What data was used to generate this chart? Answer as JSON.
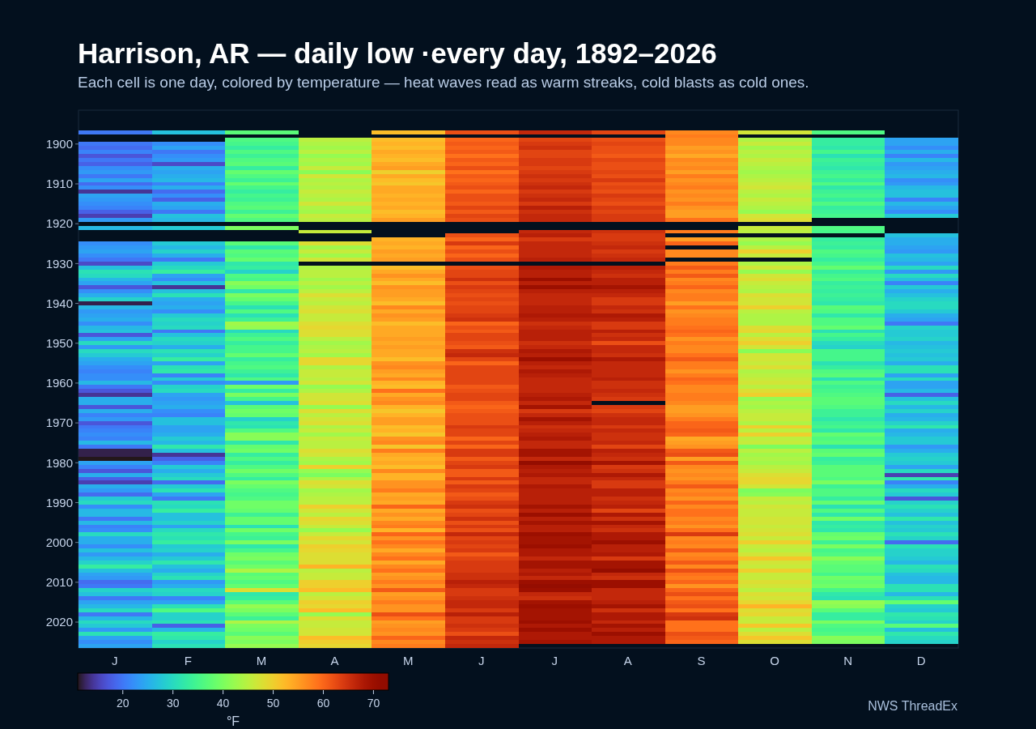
{
  "chart_data": {
    "type": "heatmap",
    "title": "Harrison, AR — daily low ·every day, 1892–2026",
    "subtitle": "Each cell is one day, colored by temperature — heat waves read as warm streaks, cold blasts as cold ones.",
    "categories": [
      "J",
      "F",
      "M",
      "A",
      "M",
      "J",
      "J",
      "A",
      "S",
      "O",
      "N",
      "D"
    ],
    "y_categories": [
      null,
      null,
      null,
      "1900",
      null,
      null,
      null,
      null,
      null,
      null,
      null,
      null,
      null,
      "1910",
      null,
      null,
      null,
      null,
      null,
      null,
      null,
      null,
      null,
      "1920",
      null,
      null,
      null,
      null,
      null,
      null,
      null,
      null,
      null,
      "1930",
      null,
      null,
      null,
      null,
      null,
      null,
      null,
      null,
      null,
      "1940",
      null,
      null,
      null,
      null,
      null,
      null,
      null,
      null,
      null,
      "1950",
      null,
      null,
      null,
      null,
      null,
      null,
      null,
      null,
      null,
      "1960",
      null,
      null,
      null,
      null,
      null,
      null,
      null,
      null,
      null,
      "1970",
      null,
      null,
      null,
      null,
      null,
      null,
      null,
      null,
      null,
      "1980",
      null,
      null,
      null,
      null,
      null,
      null,
      null,
      null,
      null,
      "1990",
      null,
      null,
      null,
      null,
      null,
      null,
      null,
      null,
      null,
      "2000",
      null,
      null,
      null,
      null,
      null,
      null,
      null,
      null,
      null,
      "2010",
      null,
      null,
      null,
      null,
      null,
      null,
      null,
      null,
      null,
      "2020",
      null,
      null,
      null,
      null,
      null,
      null
    ],
    "cells": [
      [
        20,
        27,
        37,
        null,
        52,
        62,
        66,
        63,
        57,
        47,
        36,
        null
      ],
      [
        null,
        null,
        null,
        null,
        null,
        null,
        null,
        null,
        58,
        null,
        null,
        null
      ],
      [
        null,
        null,
        36,
        45,
        52,
        60,
        63,
        62,
        57,
        44,
        33,
        24
      ],
      [
        20,
        22,
        35,
        44,
        53,
        61,
        64,
        63,
        57,
        46,
        33,
        24
      ],
      [
        19,
        24,
        33,
        43,
        52,
        60,
        65,
        62,
        55,
        43,
        32,
        22
      ],
      [
        21,
        20,
        36,
        45,
        54,
        61,
        63,
        62,
        56,
        45,
        35,
        25
      ],
      [
        17,
        22,
        34,
        42,
        53,
        59,
        63,
        61,
        54,
        44,
        31,
        21
      ],
      [
        20,
        23,
        36,
        44,
        52,
        61,
        64,
        63,
        57,
        46,
        34,
        26
      ],
      [
        18,
        16,
        37,
        43,
        54,
        60,
        64,
        62,
        56,
        45,
        33,
        23
      ],
      [
        22,
        25,
        33,
        46,
        55,
        62,
        63,
        62,
        57,
        44,
        32,
        24
      ],
      [
        23,
        24,
        38,
        41,
        50,
        59,
        64,
        63,
        55,
        43,
        34,
        25
      ],
      [
        20,
        25,
        36,
        47,
        54,
        61,
        65,
        62,
        58,
        44,
        35,
        26
      ],
      [
        24,
        26,
        34,
        44,
        52,
        60,
        64,
        64,
        56,
        45,
        33,
        22
      ],
      [
        19,
        21,
        38,
        45,
        51,
        61,
        65,
        62,
        57,
        46,
        36,
        23
      ],
      [
        22,
        25,
        35,
        44,
        54,
        62,
        66,
        63,
        58,
        47,
        32,
        26
      ],
      [
        14,
        19,
        33,
        46,
        54,
        60,
        64,
        62,
        56,
        45,
        34,
        27
      ],
      [
        24,
        22,
        35,
        45,
        53,
        62,
        65,
        64,
        57,
        44,
        35,
        27
      ],
      [
        23,
        18,
        34,
        44,
        54,
        62,
        66,
        63,
        56,
        46,
        33,
        21
      ],
      [
        22,
        25,
        36,
        47,
        53,
        61,
        64,
        62,
        58,
        45,
        36,
        26
      ],
      [
        21,
        24,
        37,
        44,
        54,
        63,
        67,
        64,
        56,
        44,
        33,
        24
      ],
      [
        18,
        20,
        34,
        43,
        52,
        61,
        65,
        63,
        55,
        42,
        34,
        22
      ],
      [
        15,
        27,
        38,
        46,
        53,
        63,
        66,
        64,
        55,
        47,
        35,
        28
      ],
      [
        23,
        26,
        36,
        45,
        55,
        62,
        66,
        64,
        59,
        48,
        null,
        null
      ],
      [
        null,
        null,
        null,
        null,
        null,
        null,
        null,
        null,
        null,
        null,
        null,
        null
      ],
      [
        26,
        28,
        40,
        null,
        null,
        null,
        null,
        null,
        null,
        46,
        36,
        null
      ],
      [
        null,
        null,
        null,
        46,
        null,
        null,
        66,
        65,
        58,
        45,
        35,
        null
      ],
      [
        null,
        null,
        null,
        null,
        null,
        62,
        67,
        64,
        null,
        null,
        null,
        27
      ],
      [
        null,
        null,
        null,
        null,
        53,
        60,
        64,
        64,
        55,
        44,
        33,
        25
      ],
      [
        22,
        28,
        37,
        48,
        54,
        64,
        66,
        65,
        60,
        42,
        34,
        25
      ],
      [
        23,
        26,
        32,
        43,
        53,
        60,
        66,
        66,
        null,
        45,
        33,
        24
      ],
      [
        24,
        29,
        37,
        46,
        55,
        62,
        66,
        64,
        57,
        50,
        36,
        23
      ],
      [
        22,
        25,
        36,
        43,
        54,
        60,
        66,
        65,
        57,
        46,
        35,
        27
      ],
      [
        20,
        20,
        38,
        47,
        55,
        62,
        67,
        66,
        null,
        null,
        33,
        26
      ],
      [
        16,
        28,
        32,
        null,
        null,
        null,
        null,
        null,
        58,
        44,
        35,
        24
      ],
      [
        27,
        30,
        33,
        44,
        52,
        62,
        68,
        67,
        61,
        47,
        38,
        30
      ],
      [
        31,
        33,
        29,
        45,
        54,
        63,
        67,
        66,
        58,
        42,
        33,
        23
      ],
      [
        30,
        24,
        36,
        45,
        56,
        63,
        67,
        65,
        61,
        47,
        35,
        30
      ],
      [
        26,
        22,
        35,
        43,
        54,
        65,
        70,
        67,
        57,
        48,
        36,
        27
      ],
      [
        24,
        27,
        41,
        45,
        52,
        62,
        67,
        67,
        58,
        46,
        33,
        21
      ],
      [
        17,
        14,
        39,
        43,
        56,
        64,
        70,
        69,
        60,
        45,
        34,
        28
      ],
      [
        22,
        27,
        32,
        45,
        55,
        63,
        67,
        67,
        57,
        44,
        33,
        25
      ],
      [
        25,
        31,
        40,
        48,
        55,
        62,
        66,
        66,
        58,
        48,
        34,
        27
      ],
      [
        29,
        25,
        38,
        46,
        54,
        63,
        66,
        64,
        58,
        47,
        33,
        29
      ],
      [
        12,
        24,
        35,
        45,
        52,
        62,
        66,
        64,
        55,
        47,
        32,
        30
      ],
      [
        26,
        25,
        31,
        47,
        57,
        63,
        67,
        66,
        59,
        50,
        37,
        30
      ],
      [
        23,
        22,
        36,
        48,
        54,
        63,
        67,
        65,
        56,
        45,
        36,
        28
      ],
      [
        24,
        28,
        31,
        46,
        56,
        64,
        68,
        68,
        57,
        44,
        32,
        25
      ],
      [
        25,
        30,
        34,
        46,
        55,
        65,
        67,
        67,
        58,
        44,
        36,
        24
      ],
      [
        22,
        29,
        43,
        48,
        52,
        60,
        65,
        64,
        58,
        44,
        36,
        20
      ],
      [
        26,
        30,
        42,
        49,
        54,
        62,
        66,
        64,
        59,
        48,
        38,
        29
      ],
      [
        27,
        20,
        30,
        48,
        54,
        61,
        67,
        67,
        60,
        49,
        31,
        28
      ],
      [
        17,
        27,
        34,
        48,
        54,
        63,
        67,
        65,
        59,
        45,
        35,
        28
      ],
      [
        24,
        30,
        36,
        45,
        55,
        63,
        67,
        66,
        56,
        48,
        33,
        29
      ],
      [
        30,
        29,
        33,
        43,
        54,
        62,
        65,
        62,
        58,
        50,
        30,
        26
      ],
      [
        23,
        25,
        35,
        44,
        55,
        61,
        66,
        66,
        57,
        47,
        29,
        27
      ],
      [
        30,
        31,
        35,
        45,
        54,
        65,
        68,
        66,
        57,
        41,
        35,
        28
      ],
      [
        28,
        29,
        38,
        43,
        54,
        66,
        67,
        65,
        59,
        47,
        35,
        27
      ],
      [
        25,
        33,
        33,
        49,
        52,
        63,
        70,
        68,
        61,
        47,
        35,
        28
      ],
      [
        24,
        24,
        35,
        49,
        56,
        60,
        67,
        66,
        58,
        46,
        31,
        25
      ],
      [
        22,
        31,
        36,
        44,
        57,
        63,
        66,
        66,
        58,
        48,
        33,
        31
      ],
      [
        21,
        32,
        34,
        46,
        55,
        63,
        68,
        66,
        56,
        44,
        36,
        31
      ],
      [
        22,
        21,
        32,
        46,
        54,
        63,
        67,
        66,
        58,
        45,
        37,
        24
      ],
      [
        22,
        28,
        36,
        45,
        57,
        63,
        66,
        67,
        60,
        46,
        31,
        30
      ],
      [
        26,
        22,
        23,
        47,
        53,
        63,
        66,
        65,
        59,
        47,
        36,
        24
      ],
      [
        20,
        29,
        39,
        42,
        52,
        61,
        66,
        65,
        57,
        45,
        34,
        24
      ],
      [
        17,
        30,
        33,
        44,
        59,
        62,
        66,
        66,
        57,
        48,
        35,
        26
      ],
      [
        14,
        24,
        40,
        47,
        54,
        63,
        67,
        65,
        58,
        50,
        36,
        18
      ],
      [
        25,
        23,
        35,
        47,
        56,
        63,
        68,
        64,
        58,
        42,
        37,
        27
      ],
      [
        25,
        24,
        27,
        48,
        57,
        61,
        66,
        null,
        57,
        44,
        37,
        30
      ],
      [
        17,
        25,
        37,
        42,
        53,
        60,
        69,
        64,
        55,
        43,
        36,
        26
      ],
      [
        25,
        22,
        39,
        48,
        51,
        61,
        64,
        63,
        55,
        45,
        34,
        29
      ],
      [
        21,
        21,
        38,
        45,
        53,
        62,
        66,
        65,
        56,
        46,
        34,
        25
      ],
      [
        23,
        27,
        29,
        47,
        55,
        62,
        69,
        66,
        58,
        46,
        32,
        26
      ],
      [
        17,
        27,
        32,
        48,
        55,
        62,
        67,
        66,
        60,
        44,
        34,
        29
      ],
      [
        20,
        24,
        31,
        44,
        52,
        64,
        65,
        64,
        60,
        50,
        35,
        32
      ],
      [
        21,
        24,
        36,
        46,
        53,
        63,
        66,
        66,
        61,
        45,
        32,
        25
      ],
      [
        22,
        25,
        41,
        43,
        51,
        63,
        67,
        65,
        60,
        50,
        38,
        26
      ],
      [
        21,
        28,
        41,
        46,
        56,
        60,
        68,
        65,
        54,
        45,
        36,
        28
      ],
      [
        26,
        26,
        32,
        45,
        57,
        63,
        66,
        66,
        55,
        46,
        37,
        28
      ],
      [
        20,
        32,
        38,
        45,
        51,
        60,
        66,
        63,
        56,
        40,
        31,
        23
      ],
      [
        12,
        27,
        39,
        48,
        58,
        64,
        69,
        67,
        61,
        45,
        37,
        25
      ],
      [
        12,
        14,
        33,
        47,
        54,
        64,
        69,
        66,
        62,
        43,
        38,
        28
      ],
      [
        11,
        18,
        36,
        44,
        53,
        61,
        66,
        65,
        55,
        44,
        33,
        29
      ],
      [
        24,
        21,
        33,
        43,
        54,
        63,
        71,
        69,
        61,
        43,
        34,
        28
      ],
      [
        21,
        28,
        36,
        50,
        52,
        64,
        68,
        64,
        57,
        45,
        37,
        24
      ],
      [
        17,
        25,
        39,
        42,
        57,
        61,
        67,
        65,
        56,
        46,
        37,
        30
      ],
      [
        25,
        28,
        36,
        40,
        53,
        61,
        68,
        68,
        57,
        48,
        37,
        15
      ],
      [
        18,
        30,
        33,
        44,
        53,
        64,
        66,
        66,
        56,
        49,
        36,
        32
      ],
      [
        15,
        19,
        40,
        48,
        56,
        61,
        66,
        64,
        58,
        49,
        40,
        21
      ],
      [
        25,
        28,
        38,
        47,
        56,
        64,
        68,
        64,
        61,
        47,
        34,
        25
      ],
      [
        23,
        31,
        36,
        43,
        58,
        63,
        67,
        67,
        57,
        40,
        36,
        30
      ],
      [
        19,
        24,
        35,
        44,
        54,
        61,
        67,
        67,
        58,
        41,
        36,
        28
      ],
      [
        28,
        20,
        36,
        45,
        55,
        62,
        67,
        65,
        56,
        46,
        33,
        17
      ],
      [
        30,
        31,
        39,
        45,
        54,
        64,
        67,
        66,
        60,
        45,
        38,
        29
      ],
      [
        22,
        30,
        39,
        50,
        60,
        65,
        69,
        67,
        57,
        47,
        31,
        31
      ],
      [
        26,
        33,
        38,
        47,
        54,
        62,
        67,
        63,
        59,
        46,
        36,
        29
      ],
      [
        26,
        27,
        34,
        45,
        56,
        63,
        70,
        68,
        59,
        46,
        32,
        27
      ],
      [
        20,
        27,
        38,
        49,
        54,
        65,
        67,
        65,
        57,
        47,
        39,
        32
      ],
      [
        26,
        29,
        38,
        48,
        57,
        62,
        69,
        69,
        58,
        47,
        32,
        27
      ],
      [
        21,
        24,
        31,
        46,
        58,
        64,
        67,
        66,
        56,
        46,
        33,
        29
      ],
      [
        22,
        30,
        39,
        42,
        53,
        62,
        67,
        65,
        59,
        47,
        32,
        28
      ],
      [
        30,
        32,
        35,
        46,
        60,
        66,
        70,
        68,
        64,
        48,
        38,
        31
      ],
      [
        25,
        31,
        34,
        49,
        56,
        63,
        69,
        68,
        57,
        46,
        39,
        29
      ],
      [
        25,
        33,
        40,
        47,
        59,
        64,
        69,
        70,
        58,
        50,
        34,
        19
      ],
      [
        22,
        28,
        32,
        50,
        57,
        63,
        70,
        67,
        57,
        46,
        40,
        31
      ],
      [
        27,
        29,
        35,
        49,
        54,
        64,
        68,
        67,
        61,
        45,
        35,
        29
      ],
      [
        23,
        25,
        39,
        48,
        57,
        61,
        68,
        68,
        57,
        47,
        36,
        29
      ],
      [
        26,
        28,
        40,
        48,
        59,
        63,
        66,
        64,
        58,
        51,
        41,
        28
      ],
      [
        29,
        32,
        37,
        48,
        54,
        64,
        69,
        69,
        61,
        47,
        38,
        26
      ],
      [
        33,
        27,
        39,
        53,
        57,
        64,
        69,
        69,
        57,
        46,
        37,
        31
      ],
      [
        27,
        25,
        44,
        45,
        59,
        64,
        67,
        71,
        62,
        50,
        37,
        30
      ],
      [
        24,
        29,
        37,
        46,
        55,
        65,
        68,
        66,
        59,
        46,
        35,
        27
      ],
      [
        23,
        31,
        38,
        46,
        56,
        65,
        66,
        65,
        58,
        46,
        39,
        26
      ],
      [
        19,
        23,
        36,
        50,
        58,
        67,
        70,
        70,
        60,
        48,
        38,
        26
      ],
      [
        20,
        25,
        38,
        50,
        56,
        66,
        71,
        70,
        56,
        47,
        39,
        31
      ],
      [
        29,
        30,
        48,
        52,
        61,
        64,
        70,
        66,
        60,
        45,
        35,
        31
      ],
      [
        27,
        29,
        32,
        45,
        55,
        64,
        66,
        66,
        62,
        48,
        32,
        26
      ],
      [
        20,
        21,
        33,
        47,
        56,
        65,
        65,
        66,
        59,
        47,
        31,
        31
      ],
      [
        24,
        24,
        37,
        50,
        58,
        66,
        69,
        67,
        61,
        49,
        42,
        38
      ],
      [
        26,
        31,
        42,
        49,
        56,
        66,
        70,
        69,
        62,
        53,
        41,
        29
      ],
      [
        30,
        36,
        40,
        52,
        56,
        64,
        69,
        65,
        59,
        48,
        37,
        28
      ],
      [
        20,
        29,
        37,
        42,
        62,
        67,
        69,
        68,
        64,
        49,
        33,
        32
      ],
      [
        26,
        29,
        34,
        48,
        59,
        64,
        69,
        68,
        65,
        46,
        33,
        31
      ],
      [
        30,
        31,
        44,
        46,
        55,
        64,
        70,
        66,
        59,
        46,
        40,
        29
      ],
      [
        28,
        18,
        40,
        46,
        56,
        65,
        68,
        69,
        59,
        51,
        36,
        37
      ],
      [
        23,
        26,
        39,
        47,
        57,
        64,
        70,
        67,
        59,
        45,
        35,
        27
      ],
      [
        31,
        33,
        37,
        47,
        56,
        62,
        68,
        70,
        62,
        48,
        36,
        32
      ],
      [
        24,
        32,
        41,
        52,
        60,
        66,
        68,
        68,
        61,
        51,
        41,
        30
      ],
      [
        22,
        29,
        40,
        50,
        57,
        65,
        69,
        68,
        60,
        48,
        40,
        29
      ],
      [
        24,
        31,
        42,
        49,
        58,
        66,
        null,
        null,
        null,
        null,
        null,
        null
      ]
    ],
    "clim": [
      11,
      73
    ],
    "cticks": [
      20,
      30,
      40,
      50,
      60,
      70
    ],
    "clabel": "°F",
    "annotations": [
      "NWS ThreadEx"
    ]
  }
}
